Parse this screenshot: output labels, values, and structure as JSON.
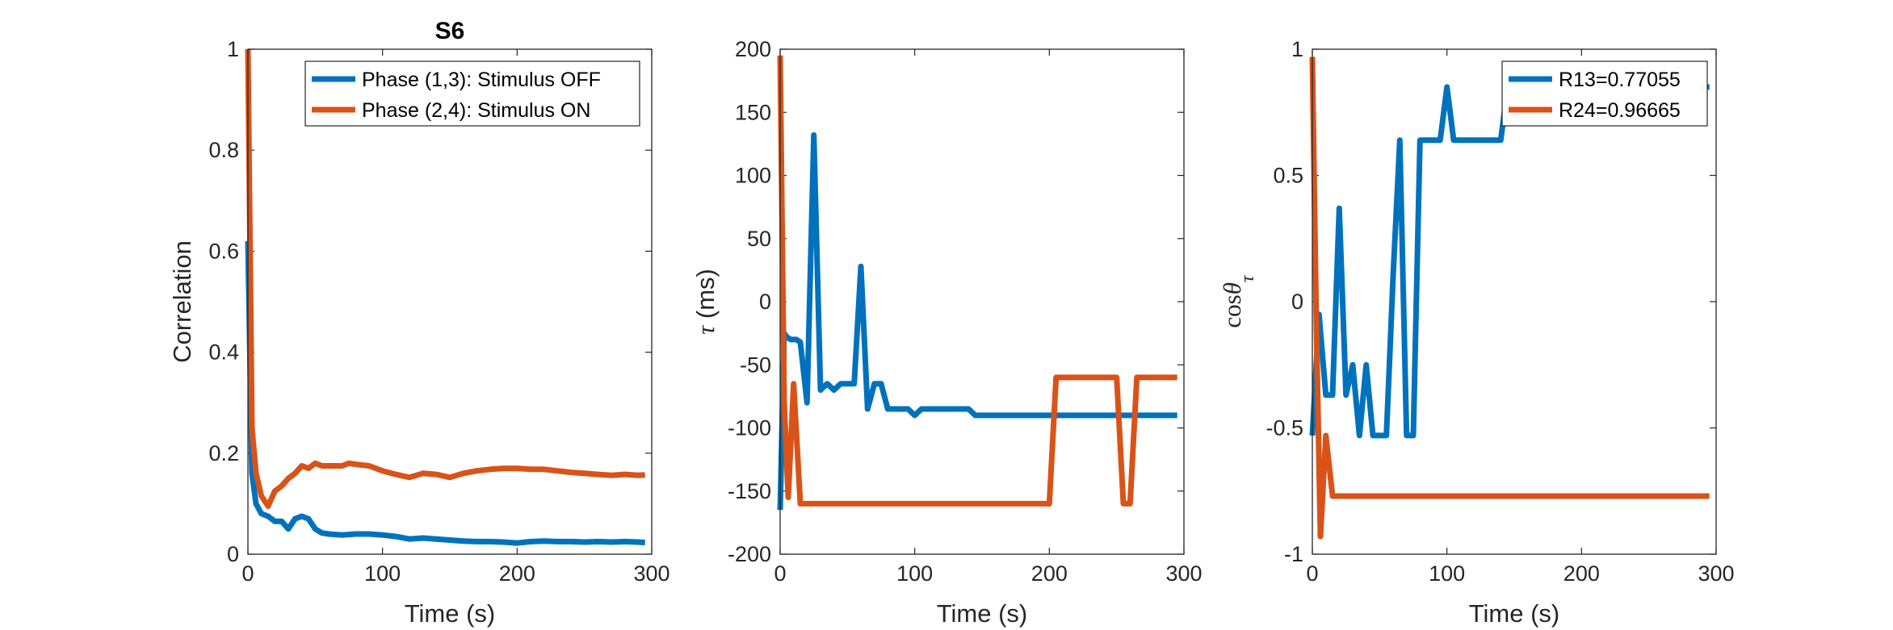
{
  "colors": {
    "blue": "#0072BD",
    "orange": "#D95319",
    "axis": "#262626"
  },
  "chart_data": [
    {
      "type": "line",
      "title": "S6",
      "xlabel": "Time (s)",
      "ylabel": "Correlation",
      "xlim": [
        0,
        300
      ],
      "ylim": [
        0,
        1
      ],
      "xticks": [
        0,
        100,
        200,
        300
      ],
      "yticks": [
        0,
        0.2,
        0.4,
        0.6,
        0.8,
        1
      ],
      "xtick_labels": [
        "0",
        "100",
        "200",
        "300"
      ],
      "ytick_labels": [
        "0",
        "0.2",
        "0.4",
        "0.6",
        "0.8",
        "1"
      ],
      "legend_position": "top-right",
      "series": [
        {
          "name": "Phase (1,3): Stimulus OFF",
          "color": "#0072BD",
          "x": [
            0,
            3,
            6,
            10,
            15,
            20,
            25,
            30,
            35,
            40,
            45,
            50,
            55,
            60,
            70,
            80,
            90,
            100,
            110,
            120,
            130,
            140,
            150,
            160,
            170,
            180,
            190,
            200,
            210,
            220,
            230,
            240,
            250,
            260,
            270,
            280,
            290,
            295
          ],
          "y": [
            0.62,
            0.16,
            0.1,
            0.08,
            0.075,
            0.065,
            0.065,
            0.05,
            0.07,
            0.075,
            0.07,
            0.05,
            0.042,
            0.04,
            0.038,
            0.04,
            0.04,
            0.038,
            0.035,
            0.03,
            0.032,
            0.03,
            0.028,
            0.026,
            0.025,
            0.025,
            0.024,
            0.022,
            0.025,
            0.026,
            0.025,
            0.025,
            0.024,
            0.025,
            0.024,
            0.025,
            0.024,
            0.023
          ]
        },
        {
          "name": "Phase (2,4): Stimulus ON",
          "color": "#D95319",
          "x": [
            0,
            3,
            6,
            10,
            15,
            20,
            25,
            30,
            35,
            40,
            45,
            50,
            55,
            60,
            70,
            75,
            80,
            90,
            100,
            110,
            115,
            120,
            130,
            140,
            150,
            160,
            170,
            180,
            190,
            200,
            210,
            220,
            230,
            240,
            250,
            260,
            270,
            280,
            290,
            295
          ],
          "y": [
            1,
            0.25,
            0.16,
            0.115,
            0.095,
            0.125,
            0.135,
            0.15,
            0.16,
            0.175,
            0.17,
            0.18,
            0.175,
            0.175,
            0.175,
            0.18,
            0.178,
            0.175,
            0.165,
            0.158,
            0.155,
            0.152,
            0.16,
            0.158,
            0.152,
            0.16,
            0.165,
            0.168,
            0.17,
            0.17,
            0.168,
            0.168,
            0.165,
            0.162,
            0.16,
            0.158,
            0.156,
            0.158,
            0.156,
            0.157
          ]
        }
      ]
    },
    {
      "type": "line",
      "xlabel": "Time (s)",
      "ylabel": "τ (ms)",
      "xlim": [
        0,
        300
      ],
      "ylim": [
        -200,
        200
      ],
      "xticks": [
        0,
        100,
        200,
        300
      ],
      "yticks": [
        -200,
        -150,
        -100,
        -50,
        0,
        50,
        100,
        150,
        200
      ],
      "xtick_labels": [
        "0",
        "100",
        "200",
        "300"
      ],
      "ytick_labels": [
        "-200",
        "-150",
        "-100",
        "-50",
        "0",
        "50",
        "100",
        "150",
        "200"
      ],
      "series": [
        {
          "color": "#0072BD",
          "x": [
            0,
            3,
            5,
            8,
            12,
            15,
            20,
            25,
            30,
            35,
            40,
            45,
            50,
            55,
            60,
            65,
            70,
            75,
            80,
            85,
            90,
            95,
            100,
            105,
            110,
            120,
            130,
            140,
            145,
            150,
            160,
            170,
            180,
            190,
            200,
            210,
            220,
            230,
            240,
            250,
            260,
            270,
            280,
            290,
            295
          ],
          "y": [
            -165,
            -25,
            -28,
            -30,
            -30,
            -32,
            -80,
            132,
            -70,
            -65,
            -70,
            -65,
            -65,
            -65,
            28,
            -85,
            -65,
            -65,
            -85,
            -85,
            -85,
            -85,
            -90,
            -85,
            -85,
            -85,
            -85,
            -85,
            -90,
            -90,
            -90,
            -90,
            -90,
            -90,
            -90,
            -90,
            -90,
            -90,
            -90,
            -90,
            -90,
            -90,
            -90,
            -90,
            -90
          ]
        },
        {
          "color": "#D95319",
          "x": [
            0,
            3,
            6,
            10,
            15,
            20,
            50,
            100,
            150,
            180,
            200,
            205,
            210,
            220,
            240,
            250,
            255,
            260,
            265,
            270,
            280,
            295
          ],
          "y": [
            195,
            -80,
            -155,
            -65,
            -160,
            -160,
            -160,
            -160,
            -160,
            -160,
            -160,
            -60,
            -60,
            -60,
            -60,
            -60,
            -160,
            -160,
            -60,
            -60,
            -60,
            -60
          ]
        }
      ]
    },
    {
      "type": "line",
      "xlabel": "Time (s)",
      "ylabel": "cosθτ",
      "ylabel_main": "cos",
      "ylabel_theta": "θ",
      "ylabel_sub": "τ",
      "xlim": [
        0,
        300
      ],
      "ylim": [
        -1,
        1
      ],
      "xticks": [
        0,
        100,
        200,
        300
      ],
      "yticks": [
        -1,
        -0.5,
        0,
        0.5,
        1
      ],
      "xtick_labels": [
        "0",
        "100",
        "200",
        "300"
      ],
      "ytick_labels": [
        "-1",
        "-0.5",
        "0",
        "0.5",
        "1"
      ],
      "legend_position": "top-right",
      "series": [
        {
          "name": "R13=0.77055",
          "color": "#0072BD",
          "x": [
            0,
            5,
            10,
            15,
            20,
            25,
            30,
            35,
            40,
            45,
            50,
            55,
            60,
            65,
            70,
            75,
            80,
            90,
            95,
            100,
            105,
            110,
            120,
            130,
            140,
            145,
            150,
            160,
            170,
            180,
            190,
            200,
            210,
            220,
            230,
            240,
            250,
            260,
            270,
            280,
            290,
            295
          ],
          "y": [
            -0.53,
            -0.05,
            -0.37,
            -0.37,
            0.37,
            -0.37,
            -0.25,
            -0.53,
            -0.25,
            -0.53,
            -0.53,
            -0.53,
            0.1,
            0.64,
            -0.53,
            -0.53,
            0.64,
            0.64,
            0.64,
            0.85,
            0.64,
            0.64,
            0.64,
            0.64,
            0.64,
            0.85,
            0.85,
            0.85,
            0.85,
            0.85,
            0.85,
            0.85,
            0.85,
            0.85,
            0.85,
            0.85,
            0.85,
            0.85,
            0.85,
            0.85,
            0.85,
            0.85
          ]
        },
        {
          "name": "R24=0.96665",
          "color": "#D95319",
          "x": [
            0,
            3,
            6,
            10,
            15,
            20,
            50,
            100,
            150,
            200,
            250,
            295
          ],
          "y": [
            0.97,
            -0.1,
            -0.93,
            -0.53,
            -0.77,
            -0.77,
            -0.77,
            -0.77,
            -0.77,
            -0.77,
            -0.77,
            -0.77
          ]
        }
      ]
    }
  ]
}
